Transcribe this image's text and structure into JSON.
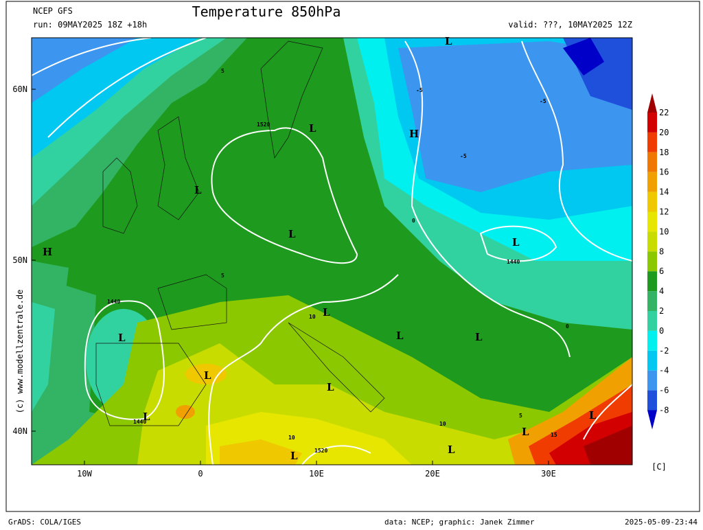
{
  "header": {
    "model": "NCEP GFS",
    "run": "run: 09MAY2025 18Z +18h",
    "title": "Temperature 850hPa",
    "valid": "valid: ???, 10MAY2025 12Z"
  },
  "map": {
    "lat_labels": [
      {
        "value": 60,
        "label": "60N"
      },
      {
        "value": 50,
        "label": "50N"
      },
      {
        "value": 40,
        "label": "40N"
      }
    ],
    "lon_labels": [
      {
        "value": -10,
        "label": "10W"
      },
      {
        "value": 0,
        "label": "0"
      },
      {
        "value": 10,
        "label": "10E"
      },
      {
        "value": 20,
        "label": "20E"
      },
      {
        "value": 30,
        "label": "30E"
      }
    ],
    "features": [
      "L",
      "L",
      "L",
      "L",
      "L",
      "L",
      "L",
      "L",
      "L",
      "L",
      "L",
      "L",
      "L",
      "L",
      "L",
      "L",
      "H",
      "H",
      "1520",
      "1520",
      "1440",
      "1440",
      "1440",
      "5",
      "5",
      "5",
      "-5",
      "-5",
      "-5",
      "0",
      "0",
      "10",
      "10",
      "10",
      "15"
    ]
  },
  "colorbar": {
    "levels": [
      22,
      20,
      18,
      16,
      14,
      12,
      10,
      8,
      6,
      4,
      2,
      0,
      -2,
      -4,
      -6,
      -8
    ],
    "colors": [
      "#a00000",
      "#d20000",
      "#f03c00",
      "#f07800",
      "#f0a000",
      "#f0c800",
      "#e6e600",
      "#c8dc00",
      "#8cc800",
      "#1e9b1e",
      "#32b464",
      "#32d2a0",
      "#00f0f0",
      "#00c8f0",
      "#3c96f0",
      "#1e50dc",
      "#0000c8"
    ],
    "unit": "[C]"
  },
  "watermark": "(c) www.modellzentrale.de",
  "footer": {
    "left": "GrADS: COLA/IGES",
    "credit": "data: NCEP; graphic: Janek Zimmer",
    "timestamp": "2025-05-09-23:44"
  }
}
